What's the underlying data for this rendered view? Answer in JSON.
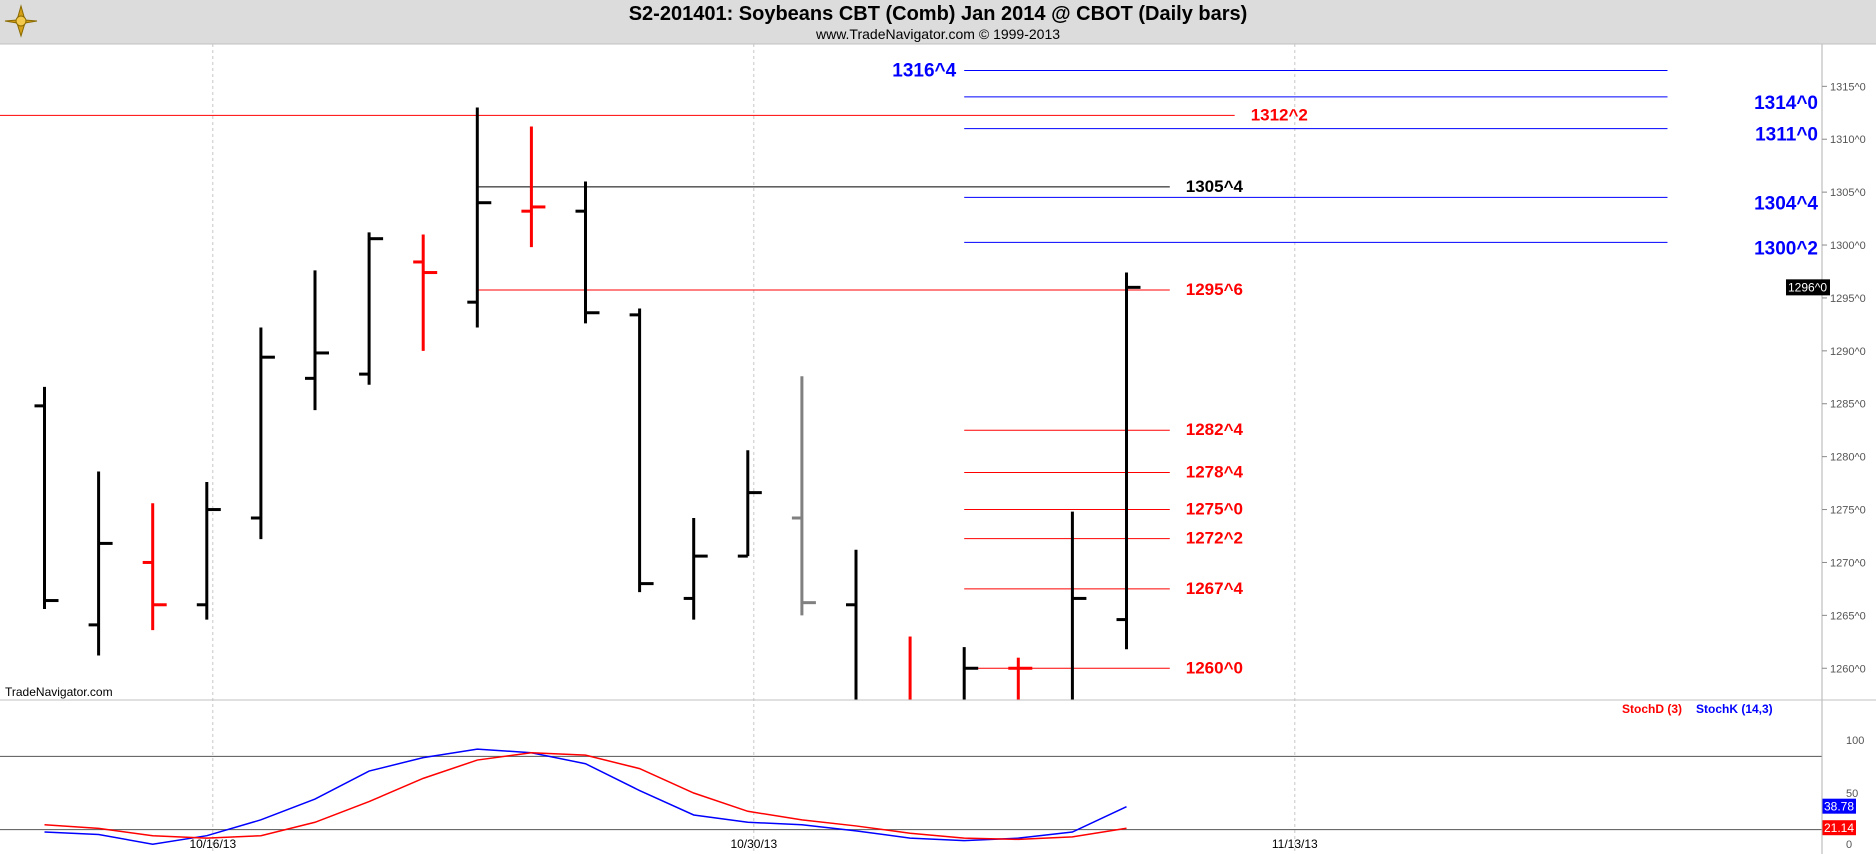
{
  "title": "S2-201401:  Soybeans CBT (Comb) Jan 2014 @ CBOT  (Daily bars)",
  "subtitle": "www.TradeNavigator.com © 1999-2013",
  "watermark": "TradeNavigator.com",
  "colors": {
    "up": "#000000",
    "down": "#ff0000",
    "neutral": "#808080",
    "blue_level": "#0000ff",
    "red_level": "#ff0000",
    "black_level": "#000000"
  },
  "chart_data": [
    {
      "type": "ohlc-bar",
      "yaxis": {
        "min": 1257,
        "max": 1319,
        "ticks": [
          "1260^0",
          "1265^0",
          "1270^0",
          "1275^0",
          "1280^0",
          "1285^0",
          "1290^0",
          "1295^0",
          "1300^0",
          "1305^0",
          "1310^0",
          "1315^0"
        ],
        "tick_values": [
          1260,
          1265,
          1270,
          1275,
          1280,
          1285,
          1290,
          1295,
          1300,
          1305,
          1310,
          1315
        ]
      },
      "xaxis": {
        "labels": [
          {
            "text": "10/16/13",
            "bar": 3
          },
          {
            "text": "10/30/13",
            "bar": 13
          },
          {
            "text": "11/13/13",
            "bar": 23
          }
        ]
      },
      "last_price_label": "1296^0",
      "last_price": 1296,
      "bars": [
        {
          "o": 1284.8,
          "h": 1286.6,
          "l": 1265.6,
          "c": 1266.4,
          "color": "up"
        },
        {
          "o": 1264.1,
          "h": 1278.6,
          "l": 1261.2,
          "c": 1271.8,
          "color": "up"
        },
        {
          "o": 1270.0,
          "h": 1275.6,
          "l": 1263.6,
          "c": 1266.0,
          "color": "down"
        },
        {
          "o": 1266.0,
          "h": 1277.6,
          "l": 1264.6,
          "c": 1275.0,
          "color": "up"
        },
        {
          "o": 1274.2,
          "h": 1292.2,
          "l": 1272.2,
          "c": 1289.4,
          "color": "up"
        },
        {
          "o": 1287.4,
          "h": 1297.6,
          "l": 1284.4,
          "c": 1289.8,
          "color": "up"
        },
        {
          "o": 1287.8,
          "h": 1301.2,
          "l": 1286.8,
          "c": 1300.6,
          "color": "up"
        },
        {
          "o": 1298.4,
          "h": 1301.0,
          "l": 1290.0,
          "c": 1297.4,
          "color": "down"
        },
        {
          "o": 1294.6,
          "h": 1313.0,
          "l": 1292.2,
          "c": 1304.0,
          "color": "up"
        },
        {
          "o": 1303.2,
          "h": 1311.2,
          "l": 1299.8,
          "c": 1303.6,
          "color": "down"
        },
        {
          "o": 1303.2,
          "h": 1306.0,
          "l": 1292.6,
          "c": 1293.6,
          "color": "up"
        },
        {
          "o": 1293.4,
          "h": 1294.0,
          "l": 1267.2,
          "c": 1268.0,
          "color": "up"
        },
        {
          "o": 1266.6,
          "h": 1274.2,
          "l": 1264.6,
          "c": 1270.6,
          "color": "up"
        },
        {
          "o": 1270.6,
          "h": 1280.6,
          "l": 1270.6,
          "c": 1276.6,
          "color": "up"
        },
        {
          "o": 1274.2,
          "h": 1287.6,
          "l": 1265.0,
          "c": 1266.2,
          "color": "neutral"
        },
        {
          "o": 1266.0,
          "h": 1271.2,
          "l": 1257.0,
          "c": 1257.0,
          "color": "up"
        },
        {
          "o": 1257.0,
          "h": 1263.0,
          "l": 1257.0,
          "c": 1257.0,
          "color": "down"
        },
        {
          "o": 1257.0,
          "h": 1262.0,
          "l": 1257.0,
          "c": 1260.0,
          "color": "up"
        },
        {
          "o": 1260.0,
          "h": 1261.0,
          "l": 1257.0,
          "c": 1260.0,
          "color": "down"
        },
        {
          "o": 1257.0,
          "h": 1274.8,
          "l": 1257.0,
          "c": 1266.6,
          "color": "up"
        },
        {
          "o": 1264.6,
          "h": 1297.4,
          "l": 1261.8,
          "c": 1296.0,
          "color": "up"
        }
      ],
      "levels": [
        {
          "label": "1316^4",
          "value": 1316.5,
          "color": "blue_level",
          "bar_from": 17,
          "bar_to": 30,
          "label_side": "left"
        },
        {
          "label": "1314^0",
          "value": 1314.0,
          "color": "blue_level",
          "bar_from": 17,
          "bar_to": 30,
          "label_side": "right"
        },
        {
          "label": "1312^2",
          "value": 1312.25,
          "color": "red_level",
          "bar_from": -1,
          "bar_to": 22,
          "label_side": "right"
        },
        {
          "label": "1311^0",
          "value": 1311.0,
          "color": "blue_level",
          "bar_from": 17,
          "bar_to": 30,
          "label_side": "right"
        },
        {
          "label": "1305^4",
          "value": 1305.5,
          "color": "black_level",
          "bar_from": 8,
          "bar_to": 20.8,
          "label_side": "right"
        },
        {
          "label": "1304^4",
          "value": 1304.5,
          "color": "blue_level",
          "bar_from": 17,
          "bar_to": 30,
          "label_side": "right"
        },
        {
          "label": "1300^2",
          "value": 1300.25,
          "color": "blue_level",
          "bar_from": 17,
          "bar_to": 30,
          "label_side": "right"
        },
        {
          "label": "1295^6",
          "value": 1295.75,
          "color": "red_level",
          "bar_from": 8,
          "bar_to": 20.8,
          "label_side": "right"
        },
        {
          "label": "1282^4",
          "value": 1282.5,
          "color": "red_level",
          "bar_from": 17,
          "bar_to": 20.8,
          "label_side": "right"
        },
        {
          "label": "1278^4",
          "value": 1278.5,
          "color": "red_level",
          "bar_from": 17,
          "bar_to": 20.8,
          "label_side": "right"
        },
        {
          "label": "1275^0",
          "value": 1275.0,
          "color": "red_level",
          "bar_from": 17,
          "bar_to": 20.8,
          "label_side": "right"
        },
        {
          "label": "1272^2",
          "value": 1272.25,
          "color": "red_level",
          "bar_from": 17,
          "bar_to": 20.8,
          "label_side": "right"
        },
        {
          "label": "1267^4",
          "value": 1267.5,
          "color": "red_level",
          "bar_from": 17,
          "bar_to": 20.8,
          "label_side": "right"
        },
        {
          "label": "1260^0",
          "value": 1260.0,
          "color": "red_level",
          "bar_from": 17,
          "bar_to": 20.8,
          "label_side": "right"
        }
      ]
    },
    {
      "type": "line",
      "yaxis": {
        "min": 0,
        "max": 100,
        "ticks": [
          "100",
          "50",
          "0"
        ],
        "tick_values": [
          100,
          50,
          0
        ],
        "reference_lines": [
          80,
          20
        ]
      },
      "legend": [
        {
          "name": "StochD (3)",
          "color": "#ff0000"
        },
        {
          "name": "StochK (14,3)",
          "color": "#0000ff"
        }
      ],
      "value_labels": [
        {
          "text": "38.78",
          "value": 38.78,
          "color": "#0000ff"
        },
        {
          "text": "21.14",
          "value": 21.14,
          "color": "#ff0000"
        }
      ],
      "series": [
        {
          "name": "StochK (14,3)",
          "color": "#0000ff",
          "values": [
            18,
            16,
            8,
            15,
            28,
            45,
            68,
            79,
            86,
            83,
            74,
            52,
            32,
            26,
            24,
            19,
            13,
            11,
            13,
            18,
            38.78
          ]
        },
        {
          "name": "StochD (3)",
          "color": "#ff0000",
          "values": [
            24,
            21,
            15,
            13,
            15,
            26,
            43,
            62,
            77,
            83,
            81,
            70,
            50,
            35,
            28,
            23,
            17,
            13,
            12,
            14,
            21.14
          ]
        }
      ]
    }
  ]
}
